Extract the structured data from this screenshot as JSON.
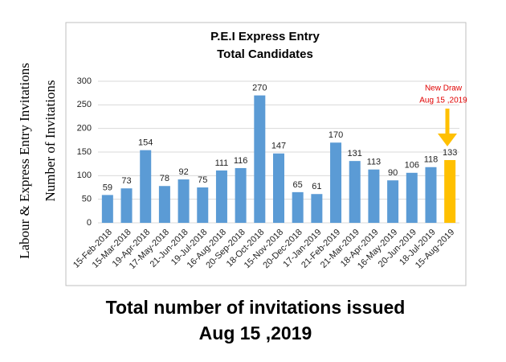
{
  "chart_data": {
    "type": "bar",
    "title": "P.E.I  Express Entry",
    "subtitle": "Total Candidates",
    "side_labels": [
      "Labour & Express Entry Invitations",
      "Number of Invitations"
    ],
    "footer": [
      "Total number of invitations issued",
      "Aug 15 ,2019"
    ],
    "annotation": [
      "New Draw",
      "Aug 15 ,2019"
    ],
    "categories": [
      "15-Feb-2018",
      "15-Mar-2018",
      "19-Apr-2018",
      "17-May-2018",
      "21-Jun-2018",
      "19-Jul-2018",
      "16-Aug-2018",
      "20-Sep-2018",
      "18-Oct-2018",
      "15-Nov-2018",
      "20-Dec-2018",
      "17-Jan-2019",
      "21-Feb-2019",
      "21-Mar-2019",
      "18-Apr-2019",
      "16-May-2019",
      "20-Jun-2019",
      "18-Jul-2019",
      "15-Aug-2019"
    ],
    "values": [
      59,
      73,
      154,
      78,
      92,
      75,
      111,
      116,
      270,
      147,
      65,
      61,
      170,
      131,
      113,
      90,
      106,
      118,
      133
    ],
    "colors": [
      "#5b9bd5",
      "#5b9bd5",
      "#5b9bd5",
      "#5b9bd5",
      "#5b9bd5",
      "#5b9bd5",
      "#5b9bd5",
      "#5b9bd5",
      "#5b9bd5",
      "#5b9bd5",
      "#5b9bd5",
      "#5b9bd5",
      "#5b9bd5",
      "#5b9bd5",
      "#5b9bd5",
      "#5b9bd5",
      "#5b9bd5",
      "#5b9bd5",
      "#ffc000"
    ],
    "ylim": [
      0,
      300
    ],
    "yticks": [
      0,
      50,
      100,
      150,
      200,
      250,
      300
    ],
    "grid": true
  }
}
